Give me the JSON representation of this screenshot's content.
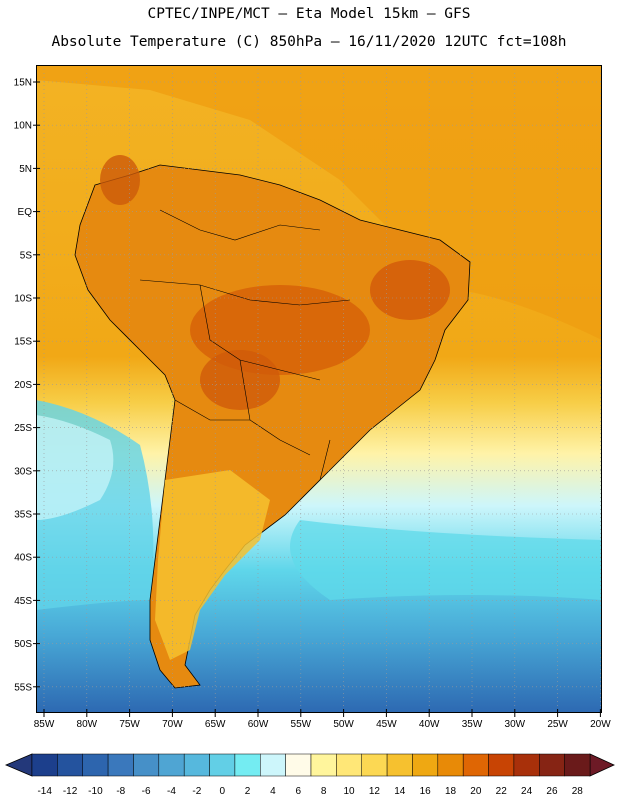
{
  "header": {
    "line1": "CPTEC/INPE/MCT –  Eta Model 15km – GFS",
    "line2": "Absolute Temperature (C) 850hPa – 16/11/2020 12UTC fct=108h"
  },
  "map": {
    "lat_labels": [
      "15N",
      "10N",
      "5N",
      "EQ",
      "5S",
      "10S",
      "15S",
      "20S",
      "25S",
      "30S",
      "35S",
      "40S",
      "45S",
      "50S",
      "55S"
    ],
    "lon_labels": [
      "85W",
      "80W",
      "75W",
      "70W",
      "65W",
      "60W",
      "55W",
      "50W",
      "45W",
      "40W",
      "35W",
      "30W",
      "25W",
      "20W"
    ]
  },
  "colorbar": {
    "ticks": [
      "-14",
      "-12",
      "-10",
      "-8",
      "-6",
      "-4",
      "-2",
      "0",
      "2",
      "4",
      "6",
      "8",
      "10",
      "12",
      "14",
      "16",
      "18",
      "20",
      "22",
      "24",
      "26",
      "28"
    ],
    "colors": [
      "#1c3f8c",
      "#24539e",
      "#2d65ae",
      "#3a78bc",
      "#4690c8",
      "#4fa5d3",
      "#56b8dd",
      "#62cfe6",
      "#74ecf2",
      "#cdf6fb",
      "#fffbe8",
      "#fff59c",
      "#ffe777",
      "#fcd853",
      "#f6c12f",
      "#efa812",
      "#e88a07",
      "#df6604",
      "#c84404",
      "#a8300a",
      "#862414",
      "#6a1a1a"
    ],
    "under_color": "#23387a",
    "over_color": "#6d1a26"
  }
}
